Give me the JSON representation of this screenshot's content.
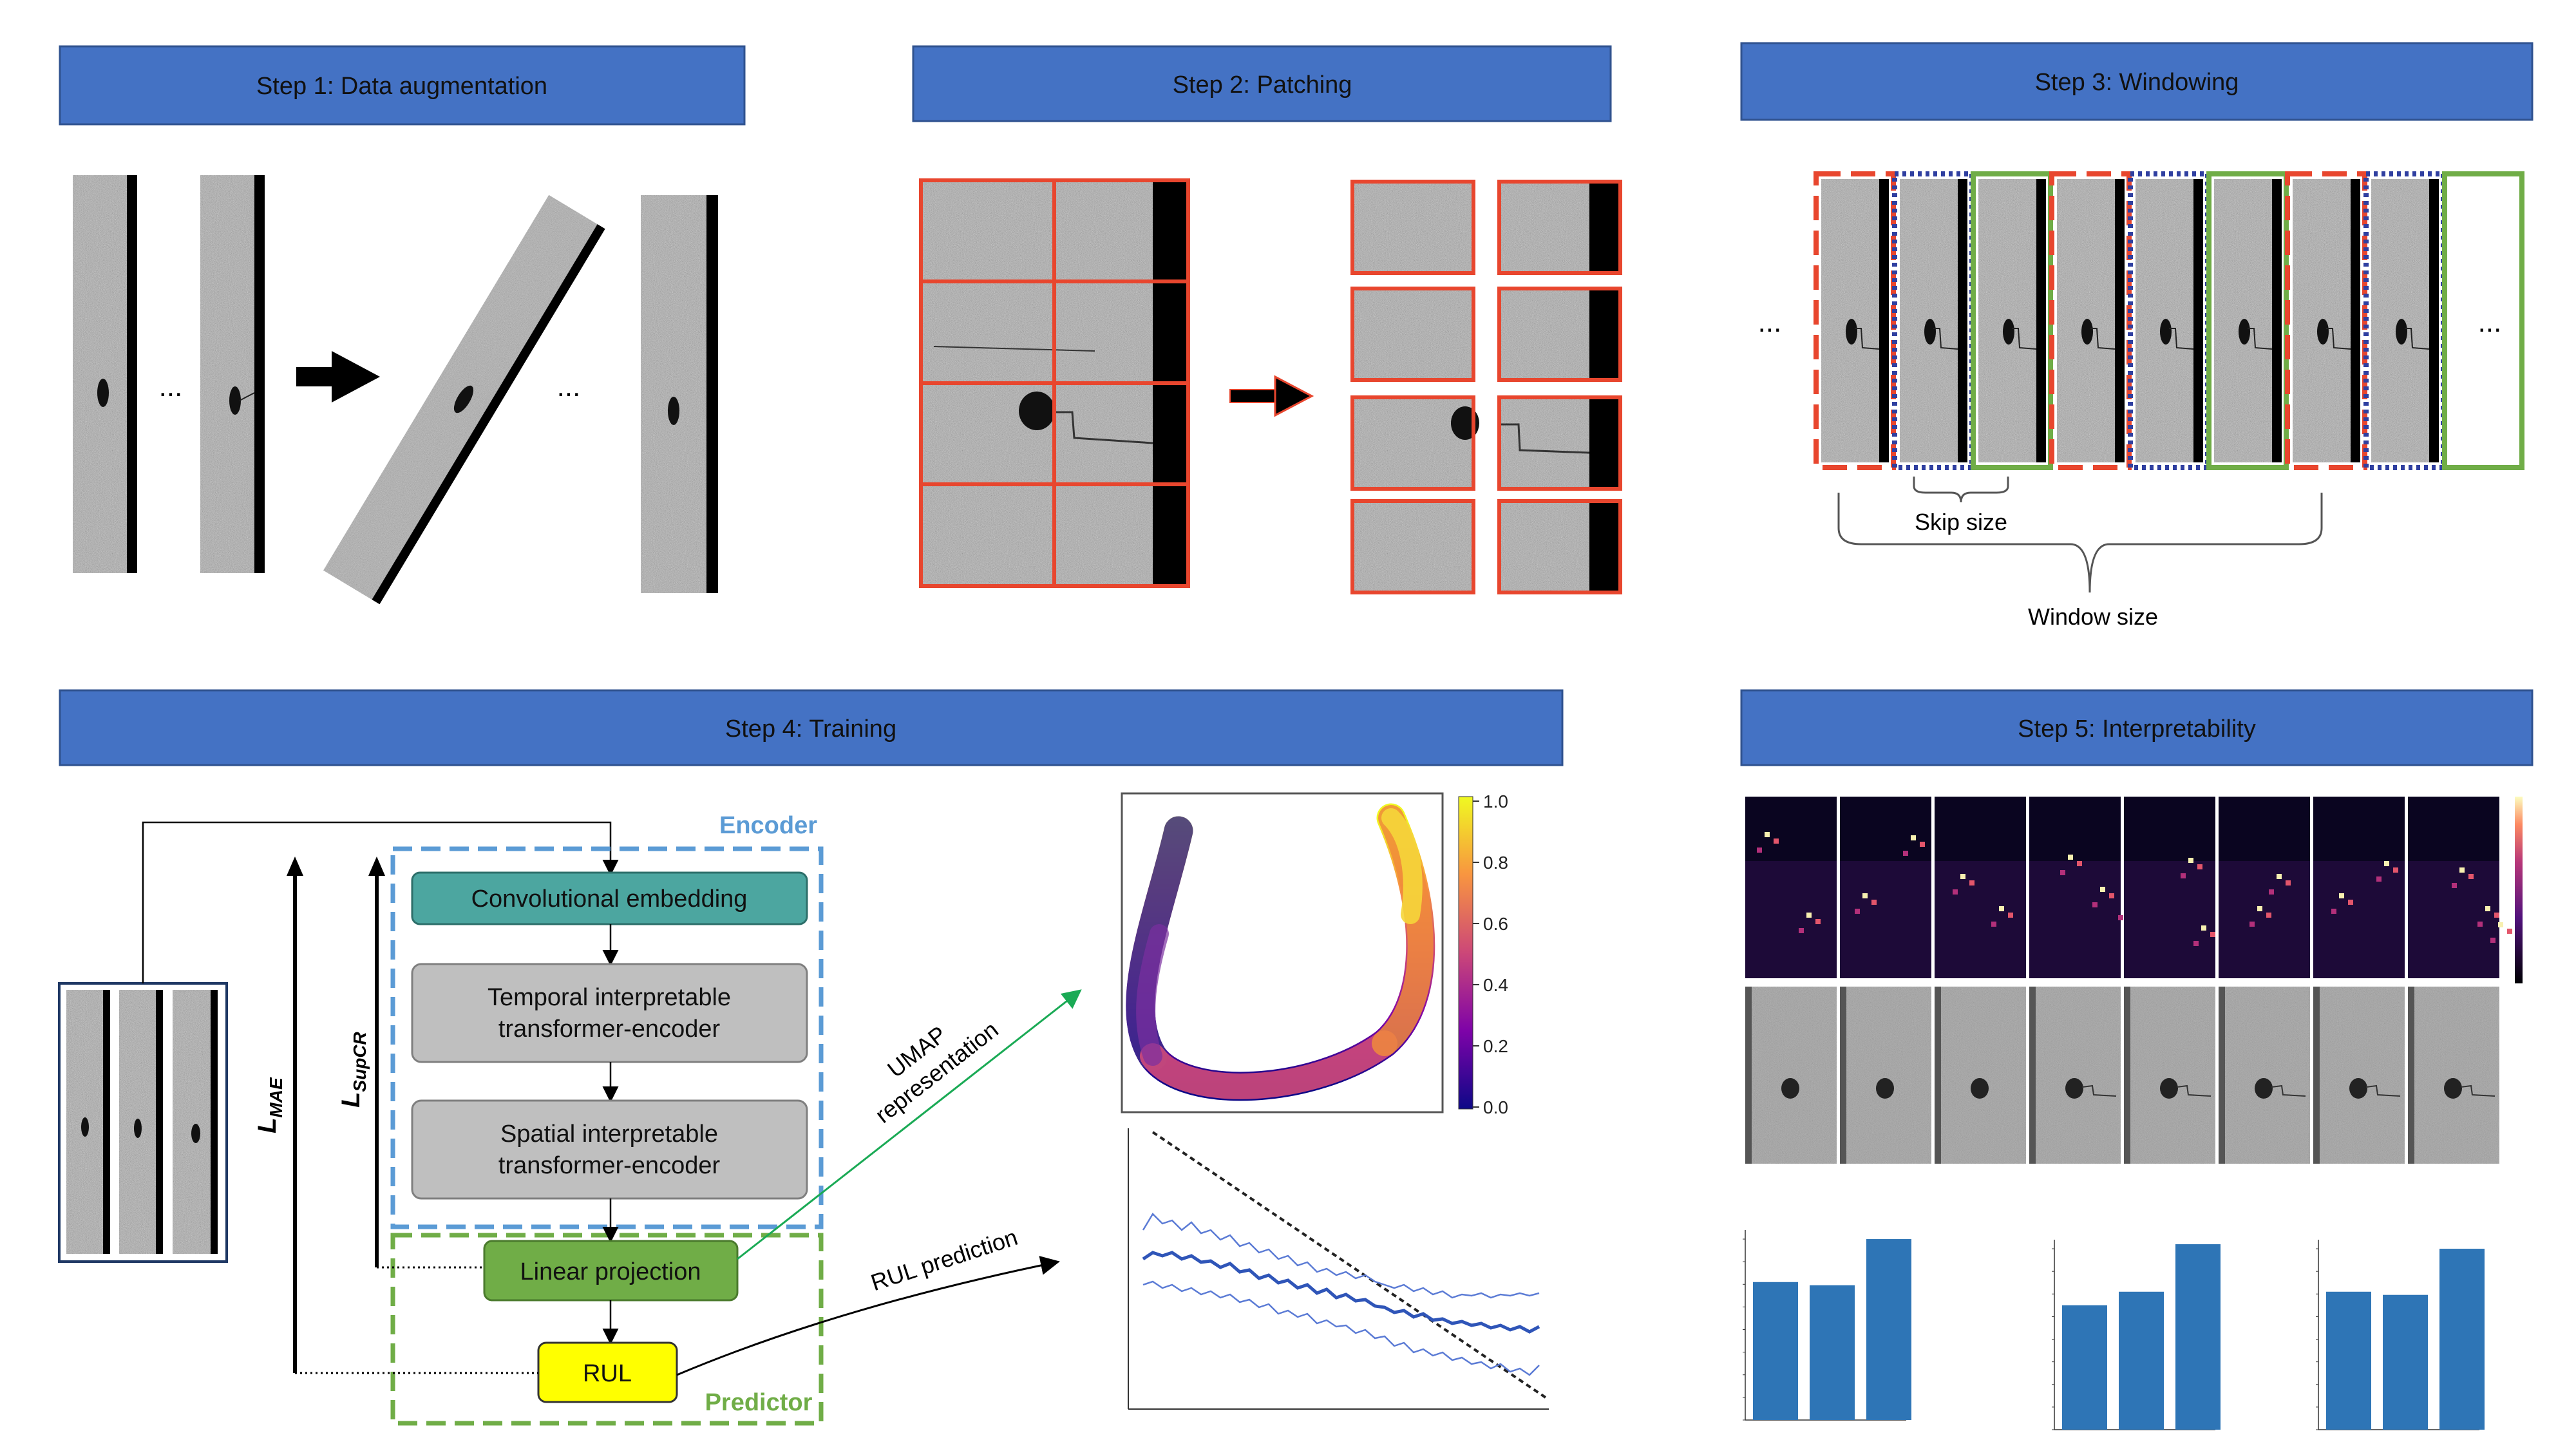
{
  "steps": {
    "step1": "Step 1: Data augmentation",
    "step2": "Step 2: Patching",
    "step3": "Step 3: Windowing",
    "step4": "Step 4: Training",
    "step5": "Step 5: Interpretability"
  },
  "step1": {
    "ellipsis_1": "...",
    "ellipsis_2": "..."
  },
  "step3": {
    "ellipsis_left": "...",
    "ellipsis_right": "...",
    "skip_size": "Skip size",
    "window_size": "Window size"
  },
  "step4": {
    "encoder_label": "Encoder",
    "predictor_label": "Predictor",
    "blocks": {
      "conv_embed": "Convolutional embedding",
      "temporal_l1": "Temporal interpretable",
      "temporal_l2": "transformer-encoder",
      "spatial_l1": "Spatial interpretable",
      "spatial_l2": "transformer-encoder",
      "linear_proj": "Linear projection",
      "rul": "RUL"
    },
    "loss_mae_main": "L",
    "loss_mae_sub": "MAE",
    "loss_supcr_main": "L",
    "loss_supcr_sub": "SupCR",
    "umap_l1": "UMAP",
    "umap_l2": "representation",
    "rul_prediction": "RUL prediction"
  },
  "umap_colorbar": {
    "ticks": [
      "1.0",
      "0.8",
      "0.6",
      "0.4",
      "0.2",
      "0.0"
    ]
  },
  "interpretability": {
    "bar_values": [
      [
        0.305,
        0.298,
        0.4
      ],
      [
        0.275,
        0.305,
        0.41
      ],
      [
        0.305,
        0.298,
        0.4
      ]
    ]
  },
  "colors": {
    "step_header": "#4472c4",
    "teal_block": "#4ca6a0",
    "gray_block": "#bfbfbf",
    "green_block": "#70ad47",
    "rul_block": "#ffff00",
    "encoder_dash": "#5b9bd5",
    "predictor_dash": "#70ad47",
    "patch_border": "#e8462e",
    "bar_color": "#2e75b6"
  }
}
